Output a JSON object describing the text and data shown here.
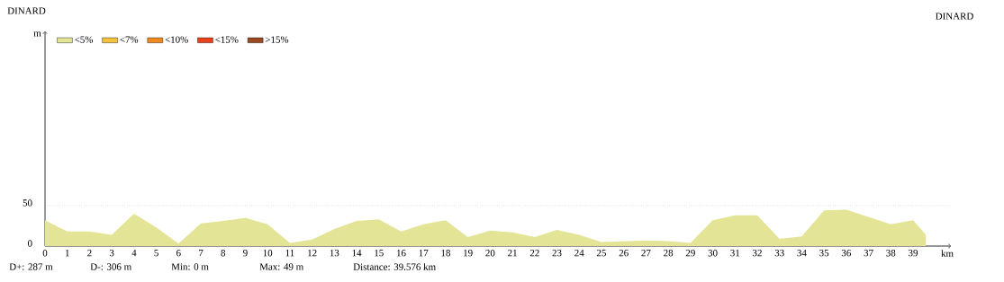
{
  "chart_data": {
    "type": "area",
    "title": "DINARD",
    "xlabel": "km",
    "ylabel": "m",
    "annotations": [
      "DINARD",
      "D+: 287 m",
      "D-: 306 m",
      "Min: 0 m",
      "Max: 49 m",
      "Distance: 39.576 km"
    ],
    "series": [
      {
        "name": "<5%",
        "color": "#e3e496",
        "x": [
          0,
          1,
          2,
          3,
          4,
          5,
          6,
          7,
          8,
          9,
          10,
          11,
          12,
          13,
          14,
          15,
          16,
          17,
          18,
          19,
          20,
          21,
          22,
          23,
          24,
          25,
          26,
          27,
          28,
          29,
          30,
          31,
          32,
          33,
          34,
          35,
          36,
          37,
          38,
          39,
          39.576
        ],
        "values": [
          32,
          18,
          18,
          14,
          40,
          23,
          3,
          28,
          31,
          35,
          27,
          4,
          8,
          21,
          31,
          33,
          18,
          27,
          32,
          11,
          19,
          17,
          11,
          20,
          14,
          5,
          6,
          7,
          6,
          4,
          32,
          38,
          38,
          9,
          12,
          44,
          45,
          36,
          27,
          32,
          14
        ]
      },
      {
        "name": "<7%",
        "color": "#f5c33b"
      },
      {
        "name": "<10%",
        "color": "#f08a1c"
      },
      {
        "name": "<15%",
        "color": "#e8411c"
      },
      {
        "name": ">15%",
        "color": "#994a22"
      }
    ],
    "xlim": [
      0,
      40.7
    ],
    "ylim": [
      0,
      265
    ],
    "xticks": [
      0,
      1,
      2,
      3,
      4,
      5,
      6,
      7,
      8,
      9,
      10,
      11,
      12,
      13,
      14,
      15,
      16,
      17,
      18,
      19,
      20,
      21,
      22,
      23,
      24,
      25,
      26,
      27,
      28,
      29,
      30,
      31,
      32,
      33,
      34,
      35,
      36,
      37,
      38,
      39
    ],
    "yticks": [
      0,
      50
    ],
    "grid": "y",
    "legend": "top left"
  }
}
